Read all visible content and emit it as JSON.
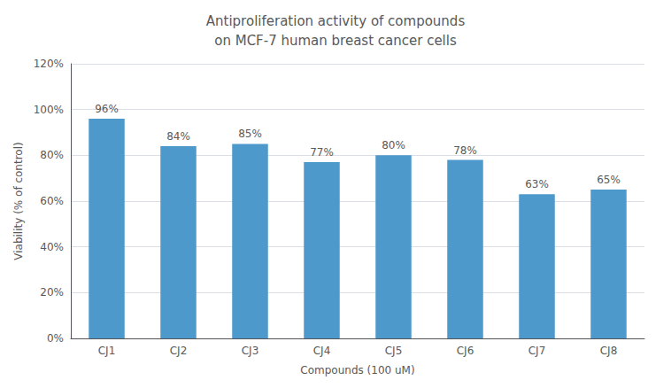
{
  "chart_data": {
    "type": "bar",
    "title": "Antiproliferation activity of compounds\non MCF-7 human breast cancer cells",
    "xlabel": "Compounds (100 uM)",
    "ylabel": "Viability (% of control)",
    "categories": [
      "CJ1",
      "CJ2",
      "CJ3",
      "CJ4",
      "CJ5",
      "CJ6",
      "CJ7",
      "CJ8"
    ],
    "values": [
      0.96,
      0.84,
      0.85,
      0.77,
      0.8,
      0.78,
      0.63,
      0.65
    ],
    "value_labels": [
      "96%",
      "84%",
      "85%",
      "77%",
      "80%",
      "78%",
      "63%",
      "65%"
    ],
    "data_labels": true,
    "color": "#4e99cb",
    "ylim": [
      0,
      1.2
    ],
    "yticks": [
      {
        "value": 0,
        "label": "0%"
      },
      {
        "value": 0.2,
        "label": "20%"
      },
      {
        "value": 0.4,
        "label": "40%"
      },
      {
        "value": 0.6,
        "label": "60%"
      },
      {
        "value": 0.8,
        "label": "80%"
      },
      {
        "value": 1.0,
        "label": "100%"
      },
      {
        "value": 1.2,
        "label": "120%"
      }
    ],
    "grid": true
  }
}
